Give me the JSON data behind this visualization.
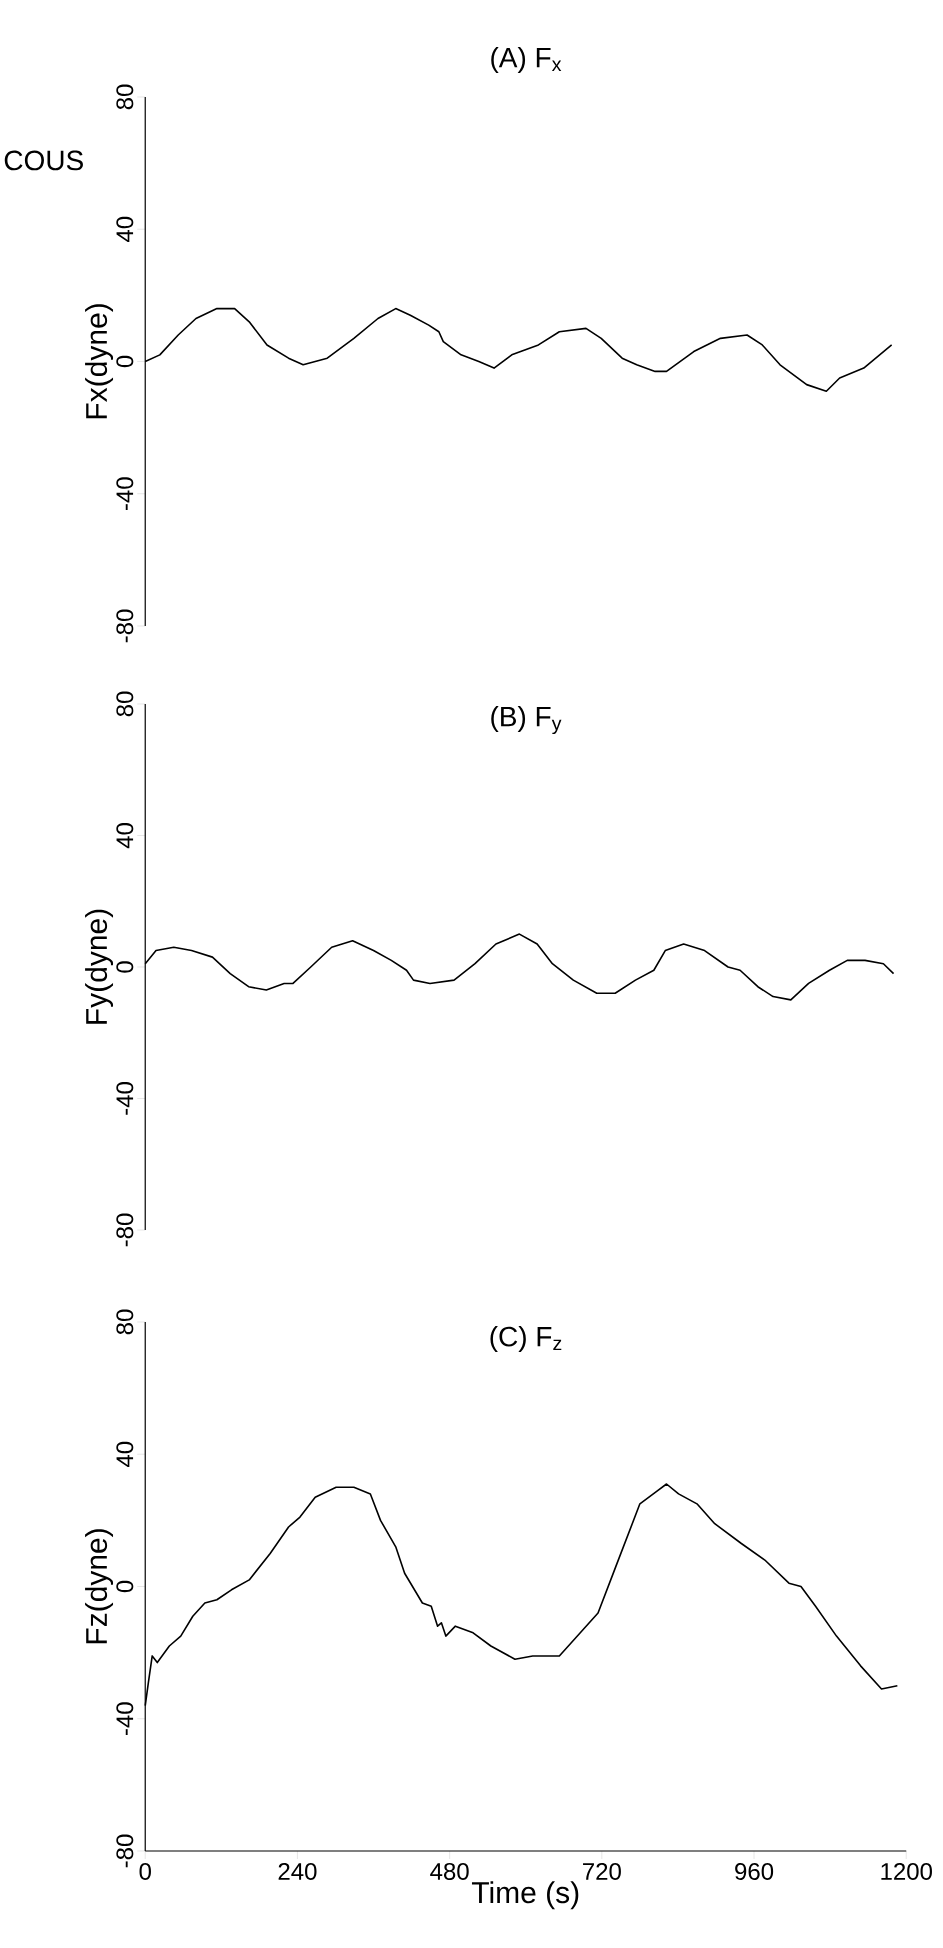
{
  "chart_data": [
    {
      "type": "line",
      "title": "(A) F$_{x}$",
      "ylabel": "Fx(dyne)",
      "annotations": [
        "COUS"
      ],
      "xlim": [
        0,
        1200
      ],
      "ylim": [
        -80,
        80
      ],
      "yticks": [
        -80,
        -40,
        0,
        40,
        80
      ],
      "tick_labels": "y",
      "series": [
        {
          "color": "#000000",
          "x": [
            0,
            23,
            52,
            80,
            113,
            141,
            164,
            192,
            226,
            249,
            287,
            329,
            367,
            395,
            418,
            447,
            463,
            470,
            498,
            526,
            550,
            578,
            620,
            653,
            695,
            719,
            752,
            775,
            804,
            822,
            865,
            907,
            949,
            973,
            1001,
            1043,
            1074,
            1095,
            1133,
            1177
          ],
          "values": [
            0,
            2,
            8,
            13,
            16,
            16,
            12,
            5,
            1,
            -1,
            1,
            7,
            13,
            16,
            14,
            11,
            9,
            6,
            2,
            0,
            -2,
            2,
            5,
            9,
            10,
            7,
            1,
            -1,
            -3,
            -3,
            3,
            7,
            8,
            5,
            -1,
            -7,
            -9,
            -5,
            -2,
            5
          ]
        }
      ]
    },
    {
      "type": "line",
      "title": "(B) F$_{y}$",
      "ylabel": "Fy(dyne)",
      "xlim": [
        0,
        1200
      ],
      "ylim": [
        -80,
        80
      ],
      "yticks": [
        -80,
        -40,
        0,
        40,
        80
      ],
      "tick_labels": "y",
      "series": [
        {
          "color": "#000000",
          "x": [
            0,
            17,
            45,
            73,
            106,
            134,
            163,
            191,
            219,
            233,
            261,
            294,
            327,
            360,
            388,
            412,
            423,
            449,
            487,
            520,
            553,
            590,
            618,
            642,
            675,
            712,
            741,
            773,
            802,
            820,
            849,
            882,
            919,
            938,
            966,
            990,
            1018,
            1046,
            1079,
            1107,
            1135,
            1164,
            1180
          ],
          "values": [
            1,
            5,
            6,
            5,
            3,
            -2,
            -6,
            -7,
            -5,
            -5,
            0,
            6,
            8,
            5,
            2,
            -1,
            -4,
            -5,
            -4,
            1,
            7,
            10,
            7,
            1,
            -4,
            -8,
            -8,
            -4,
            -1,
            5,
            7,
            5,
            0,
            -1,
            -6,
            -9,
            -10,
            -5,
            -1,
            2,
            2,
            1,
            -2
          ]
        }
      ]
    },
    {
      "type": "line",
      "title": "(C) F$_{z}$",
      "ylabel": "Fz(dyne)",
      "xlabel": "Time (s)",
      "xlim": [
        0,
        1200
      ],
      "ylim": [
        -80,
        80
      ],
      "xticks": [
        0,
        240,
        480,
        720,
        960,
        1200
      ],
      "yticks": [
        -80,
        -40,
        0,
        40,
        80
      ],
      "series": [
        {
          "color": "#000000",
          "x": [
            0,
            5,
            11,
            19,
            38,
            56,
            75,
            94,
            113,
            136,
            164,
            197,
            226,
            244,
            268,
            301,
            329,
            355,
            371,
            395,
            409,
            437,
            451,
            461,
            467,
            474,
            489,
            517,
            545,
            583,
            611,
            653,
            686,
            714,
            742,
            780,
            808,
            822,
            841,
            870,
            898,
            940,
            977,
            1015,
            1034,
            1057,
            1090,
            1128,
            1161,
            1186
          ],
          "values": [
            -36,
            -29,
            -21,
            -23,
            -18,
            -15,
            -9,
            -5,
            -4,
            -1,
            2,
            10,
            18,
            21,
            27,
            30,
            30,
            28,
            20,
            12,
            4,
            -5,
            -6,
            -12,
            -11,
            -15,
            -12,
            -14,
            -18,
            -22,
            -21,
            -21,
            -14,
            -8,
            6,
            25,
            29,
            31,
            28,
            25,
            19,
            13,
            8,
            1,
            0,
            -6,
            -15,
            -24,
            -31,
            -30
          ]
        }
      ]
    }
  ]
}
